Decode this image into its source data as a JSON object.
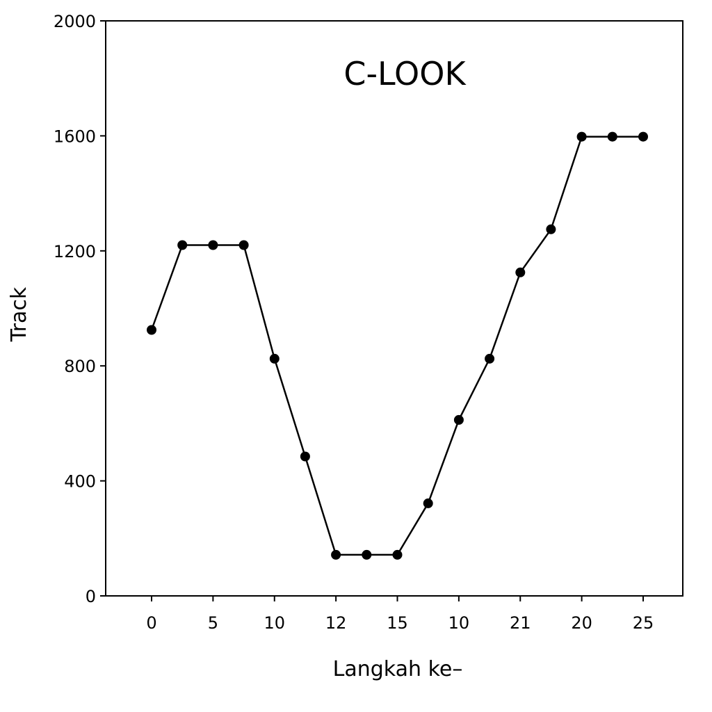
{
  "chart_data": {
    "type": "line",
    "title": "C-LOOK",
    "xlabel": "Langkah ke–",
    "ylabel": "Track",
    "x_tick_labels": [
      "0",
      "5",
      "10",
      "12",
      "15",
      "10",
      "21",
      "20",
      "25"
    ],
    "y_ticks": [
      0,
      400,
      800,
      1200,
      1600,
      2000
    ],
    "y_tick_labels": [
      "0",
      "400",
      "800",
      "1200",
      "1600",
      "2000"
    ],
    "ylim": [
      0,
      2000
    ],
    "grid": false,
    "legend": "none",
    "series": [
      {
        "values": [
          925,
          1220,
          1220,
          1220,
          825,
          485,
          143,
          143,
          143,
          322,
          612,
          825,
          1125,
          1275,
          1597,
          1597,
          1597
        ]
      }
    ],
    "colors": {
      "line": "#000000",
      "marker": "#000000",
      "axes": "#000000"
    }
  }
}
